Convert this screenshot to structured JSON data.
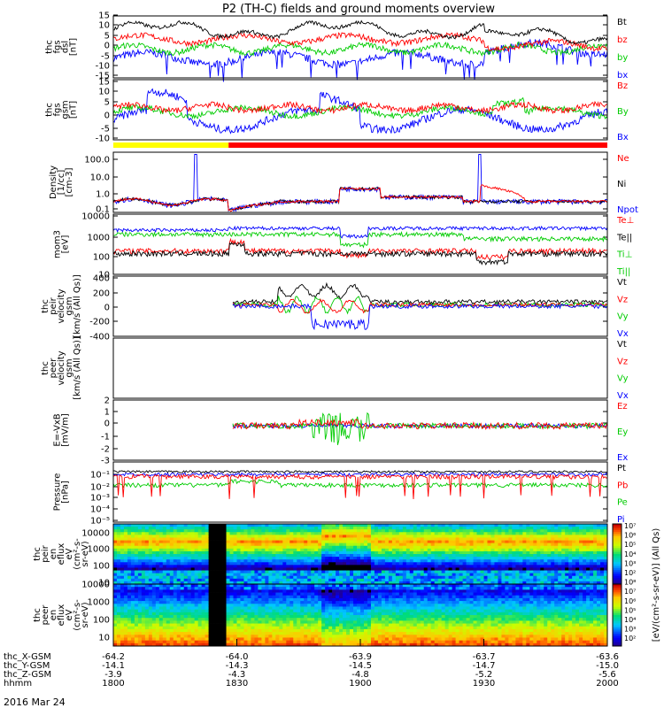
{
  "title": "P2 (TH-C) fields and ground moments overview",
  "date_label": "2016 Mar 24",
  "time_axis": {
    "ticks": [
      "1800",
      "1830",
      "1900",
      "1930",
      "2000"
    ],
    "ephemeris": [
      {
        "label": "thc_X-GSM",
        "values": [
          "-64.2",
          "-64.0",
          "-63.9",
          "-63.7",
          "-63.6"
        ]
      },
      {
        "label": "thc_Y-GSM",
        "values": [
          "-14.1",
          "-14.3",
          "-14.5",
          "-14.7",
          "-15.0"
        ]
      },
      {
        "label": "thc_Z-GSM",
        "values": [
          "-3.9",
          "-4.3",
          "-4.8",
          "-5.2",
          "-5.6"
        ]
      },
      {
        "label": "hhmm",
        "values": [
          "1800",
          "1830",
          "1900",
          "1930",
          "2000"
        ]
      }
    ]
  },
  "colors": {
    "black": "#000000",
    "red": "#ff0000",
    "green": "#00cc00",
    "blue": "#0000ff",
    "yellow": "#ffff00"
  },
  "panels": [
    {
      "id": "fgs-dsl",
      "ylabel": [
        "thc",
        "fgs",
        "dsl",
        "[nT]"
      ],
      "yticks": [
        "15",
        "10",
        "5",
        "0",
        "-5",
        "-10",
        "-15"
      ],
      "legend": [
        {
          "text": "Bt",
          "color": "#000000"
        },
        {
          "text": "bz",
          "color": "#ff0000"
        },
        {
          "text": "by",
          "color": "#00cc00"
        },
        {
          "text": "bx",
          "color": "#0000ff"
        }
      ]
    },
    {
      "id": "fgs-gsm",
      "ylabel": [
        "thc",
        "fgs",
        "gsm",
        "[nT]"
      ],
      "yticks": [
        "15",
        "10",
        "5",
        "0",
        "-5",
        "-10"
      ],
      "legend": [
        {
          "text": "Bz",
          "color": "#ff0000"
        },
        {
          "text": "By",
          "color": "#00cc00"
        },
        {
          "text": "Bx",
          "color": "#0000ff"
        }
      ]
    },
    {
      "id": "density",
      "ylabel": [
        "Density",
        "[1/cc]",
        "[cm-3]"
      ],
      "yticks": [
        "100.0",
        "10.0",
        "1.0",
        "0.1"
      ],
      "legend": [
        {
          "text": "Ne",
          "color": "#ff0000"
        },
        {
          "text": "Ni",
          "color": "#000000"
        },
        {
          "text": "Npot",
          "color": "#0000ff"
        }
      ]
    },
    {
      "id": "temperature",
      "ylabel": [
        "mom3",
        "[eV]"
      ],
      "yticks": [
        "10000",
        "1000",
        "100",
        "10"
      ],
      "legend": [
        {
          "text": "Te⊥",
          "color": "#ff0000"
        },
        {
          "text": "Te||",
          "color": "#000000"
        },
        {
          "text": "Ti⊥",
          "color": "#00cc00"
        },
        {
          "text": "Ti||",
          "color": "#00cc00"
        }
      ]
    },
    {
      "id": "ion-velocity",
      "ylabel": [
        "thc",
        "peir",
        "velocity",
        "gsm",
        "[km/s (All Qs)]"
      ],
      "yticks": [
        "400",
        "200",
        "0",
        "-200",
        "-400"
      ],
      "legend": [
        {
          "text": "Vt",
          "color": "#000000"
        },
        {
          "text": "Vz",
          "color": "#ff0000"
        },
        {
          "text": "Vy",
          "color": "#00cc00"
        },
        {
          "text": "Vx",
          "color": "#0000ff"
        }
      ]
    },
    {
      "id": "electron-velocity",
      "ylabel": [
        "thc",
        "peer",
        "velocity",
        "gsm",
        "[km/s (All Qs)]"
      ],
      "yticks": [],
      "legend": [
        {
          "text": "Vt",
          "color": "#000000"
        },
        {
          "text": "Vz",
          "color": "#ff0000"
        },
        {
          "text": "Vy",
          "color": "#00cc00"
        },
        {
          "text": "Vx",
          "color": "#0000ff"
        }
      ]
    },
    {
      "id": "efield",
      "ylabel": [
        "E=-VxB",
        "[mV/m]"
      ],
      "yticks": [
        "2",
        "1",
        "0",
        "-1",
        "-2",
        "-3"
      ],
      "legend": [
        {
          "text": "Ez",
          "color": "#ff0000"
        },
        {
          "text": "Ey",
          "color": "#00cc00"
        },
        {
          "text": "Ex",
          "color": "#0000ff"
        }
      ]
    },
    {
      "id": "pressure",
      "ylabel": [
        "Pressure",
        "[nPa]"
      ],
      "yticks": [
        "10⁻¹",
        "10⁻²",
        "10⁻³",
        "10⁻⁴",
        "10⁻⁵"
      ],
      "legend": [
        {
          "text": "Pt",
          "color": "#000000"
        },
        {
          "text": "Pb",
          "color": "#ff0000"
        },
        {
          "text": "Pe",
          "color": "#00cc00"
        },
        {
          "text": "Pi",
          "color": "#0000ff"
        }
      ]
    },
    {
      "id": "ion-spectrogram",
      "ylabel": [
        "thc",
        "peir",
        "en",
        "eflux",
        "eV",
        "(cm²-s-",
        "sr-eV)"
      ],
      "yticks": [
        "10000",
        "1000",
        "100",
        "10"
      ],
      "legend": []
    },
    {
      "id": "electron-spectrogram",
      "ylabel": [
        "thc",
        "peer",
        "en",
        "eflux",
        "eV",
        "(cm²-s-",
        "sr-eV)"
      ],
      "yticks": [
        "10000",
        "1000",
        "100",
        "10"
      ],
      "legend": []
    }
  ],
  "colorbar": {
    "label": "[eV/(cm²-s-sr-eV)] (All Qs)",
    "ticks": [
      "10⁷",
      "10⁶",
      "10⁵",
      "10⁴",
      "10³",
      "10²",
      "10⁸",
      "10⁷",
      "10⁶",
      "10⁵",
      "10⁴",
      "10³",
      "10²"
    ]
  },
  "chart_data": {
    "type": "line",
    "title": "P2 (TH-C) fields and ground moments overview",
    "x_range": [
      "1800",
      "2000"
    ],
    "xlabel": "hhmm",
    "series": [
      {
        "panel": "fgs-dsl",
        "name": "Bt",
        "x": [
          "1800",
          "1810",
          "1820",
          "1830",
          "1840",
          "1850",
          "1900",
          "1910",
          "1920",
          "1930",
          "1940",
          "1950",
          "2000"
        ],
        "values": [
          11,
          12,
          10,
          13,
          9,
          8,
          11,
          9,
          12,
          7,
          5,
          5,
          7
        ]
      },
      {
        "panel": "fgs-dsl",
        "name": "bz",
        "x": [
          "1800",
          "1810",
          "1820",
          "1830",
          "1840",
          "1850",
          "1900",
          "1910",
          "1920",
          "1930",
          "1940",
          "1950",
          "2000"
        ],
        "values": [
          6,
          7,
          6,
          5,
          3,
          3,
          4,
          5,
          5,
          2,
          2,
          1,
          2
        ]
      },
      {
        "panel": "fgs-dsl",
        "name": "by",
        "x": [
          "1800",
          "1810",
          "1820",
          "1830",
          "1840",
          "1850",
          "1900",
          "1910",
          "1920",
          "1930",
          "1940",
          "1950",
          "2000"
        ],
        "values": [
          -2,
          -1,
          0,
          1,
          0,
          -1,
          0,
          1,
          0,
          0,
          1,
          0,
          0
        ]
      },
      {
        "panel": "fgs-dsl",
        "name": "bx",
        "x": [
          "1800",
          "1810",
          "1820",
          "1830",
          "1840",
          "1850",
          "1900",
          "1910",
          "1920",
          "1930",
          "1940",
          "1950",
          "2000"
        ],
        "values": [
          -6,
          -8,
          -7,
          -9,
          -5,
          -3,
          -8,
          -6,
          -9,
          -2,
          -1,
          0,
          -1
        ]
      },
      {
        "panel": "fgs-gsm",
        "name": "Bz",
        "x": [
          "1800",
          "1830",
          "1900",
          "1930",
          "2000"
        ],
        "values": [
          2,
          1,
          2,
          1,
          0
        ]
      },
      {
        "panel": "fgs-gsm",
        "name": "By",
        "x": [
          "1800",
          "1830",
          "1900",
          "1930",
          "2000"
        ],
        "values": [
          -1,
          1,
          -1,
          2,
          0
        ]
      },
      {
        "panel": "fgs-gsm",
        "name": "Bx",
        "x": [
          "1800",
          "1830",
          "1900",
          "1930",
          "2000"
        ],
        "values": [
          3,
          -8,
          -5,
          -2,
          0
        ]
      },
      {
        "panel": "density",
        "name": "Ne",
        "x": [
          "1800",
          "1815",
          "1830",
          "1845",
          "1900",
          "1915",
          "1930",
          "1945",
          "2000"
        ],
        "values": [
          0.4,
          0.5,
          0.15,
          0.4,
          2,
          0.7,
          0.4,
          2,
          0.4
        ]
      },
      {
        "panel": "density",
        "name": "Ni",
        "x": [
          "1800",
          "1815",
          "1830",
          "1845",
          "1900",
          "1915",
          "1930",
          "1945",
          "2000"
        ],
        "values": [
          0.4,
          0.5,
          0.15,
          0.4,
          2,
          0.7,
          0.4,
          0.4,
          0.4
        ]
      },
      {
        "panel": "density",
        "name": "Npot",
        "x": [
          "1800",
          "1815",
          "1830",
          "1845",
          "1900",
          "1915",
          "1930",
          "1945",
          "2000"
        ],
        "values": [
          0.5,
          0.5,
          0.12,
          0.4,
          2.5,
          0.8,
          0.5,
          0.5,
          0.4
        ]
      },
      {
        "panel": "temperature",
        "name": "Te⊥",
        "x": [
          "1800",
          "1830",
          "1900",
          "1930",
          "2000"
        ],
        "values": [
          150,
          500,
          100,
          50,
          90
        ]
      },
      {
        "panel": "temperature",
        "name": "Ti⊥",
        "x": [
          "1800",
          "1830",
          "1900",
          "1930",
          "2000"
        ],
        "values": [
          1500,
          2000,
          800,
          600,
          800
        ]
      },
      {
        "panel": "temperature",
        "name": "Te||",
        "x": [
          "1800",
          "1830",
          "1900",
          "1930",
          "2000"
        ],
        "values": [
          2000,
          3000,
          2000,
          1500,
          1800
        ]
      },
      {
        "panel": "ion-velocity",
        "name": "Vt",
        "x": [
          "1830",
          "1845",
          "1900",
          "1915",
          "1930",
          "2000"
        ],
        "values": [
          20,
          150,
          250,
          80,
          60,
          40
        ]
      },
      {
        "panel": "ion-velocity",
        "name": "Vx",
        "x": [
          "1830",
          "1845",
          "1900",
          "1915",
          "1930",
          "2000"
        ],
        "values": [
          0,
          -60,
          -280,
          -80,
          -20,
          0
        ]
      },
      {
        "panel": "efield",
        "name": "Ey",
        "x": [
          "1830",
          "1845",
          "1900",
          "1915",
          "1930",
          "2000"
        ],
        "values": [
          0,
          0.3,
          -1.5,
          0.3,
          0,
          0
        ]
      },
      {
        "panel": "pressure",
        "name": "Pt",
        "x": [
          "1800",
          "1830",
          "1900",
          "1930",
          "2000"
        ],
        "values": [
          0.04,
          0.04,
          0.05,
          0.04,
          0.04
        ]
      },
      {
        "panel": "pressure",
        "name": "Pe",
        "x": [
          "1800",
          "1830",
          "1900",
          "1930",
          "2000"
        ],
        "values": [
          0.003,
          0.005,
          0.003,
          0.005,
          0.003
        ]
      }
    ]
  }
}
